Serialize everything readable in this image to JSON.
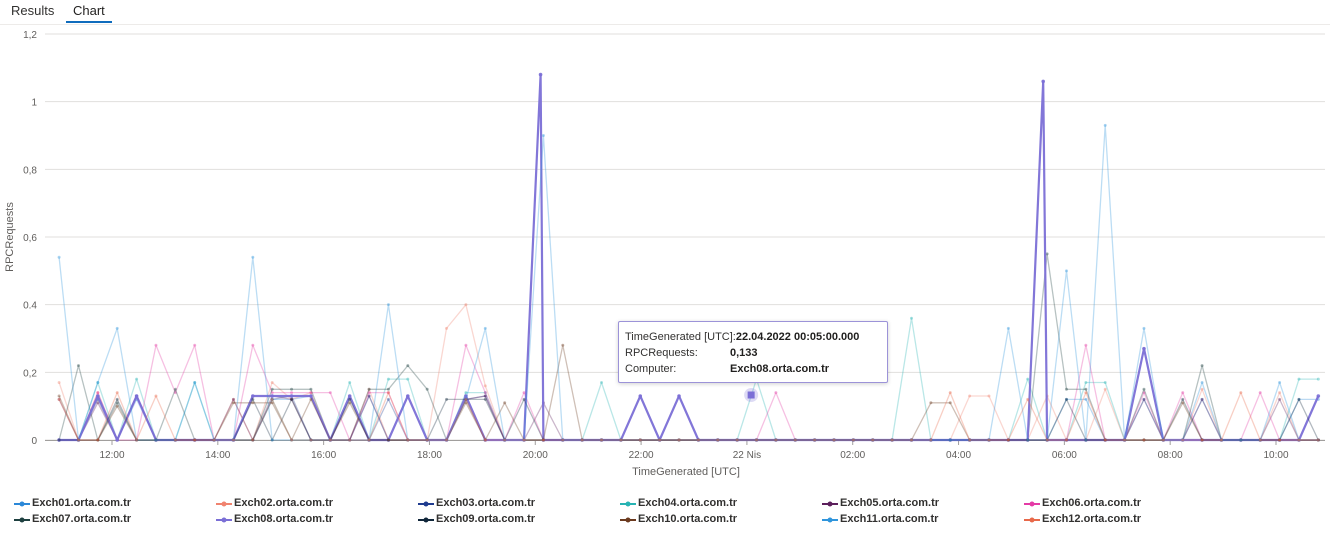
{
  "tabs": [
    {
      "label": "Results",
      "active": false
    },
    {
      "label": "Chart",
      "active": true
    }
  ],
  "colors": {
    "accent": "#0f6cbd",
    "highlight": "#7b6fd6",
    "grid": "#e1dfdd"
  },
  "chart_data": {
    "type": "line",
    "xlabel": "TimeGenerated [UTC]",
    "ylabel": "RPCRequests",
    "yticks": [
      "0",
      "0,2",
      "0.4",
      "0,6",
      "0,8",
      "1",
      "1,2"
    ],
    "ylim": [
      0,
      1.2
    ],
    "xticks": [
      "12:00",
      "14:00",
      "16:00",
      "18:00",
      "20:00",
      "22:00",
      "22 Nis",
      "02:00",
      "04:00",
      "06:00",
      "08:00",
      "10:00"
    ],
    "xtick_hours": [
      12,
      14,
      16,
      18,
      20,
      22,
      24,
      26,
      28,
      30,
      32,
      34
    ],
    "xlim_hours": [
      11,
      34.8
    ],
    "grid": true,
    "legend_position": "bottom",
    "highlighted_series": "Exch08.orta.com.tr",
    "series": [
      {
        "name": "Exch01.orta.com.tr",
        "color": "#2b88d8",
        "values": [
          0,
          0,
          0.13,
          0,
          0.12,
          0,
          0,
          0,
          0,
          0,
          0,
          0.12,
          0.12,
          0.13,
          0,
          0,
          0.13,
          0,
          0,
          0,
          0,
          0.13,
          0,
          0,
          0,
          0,
          0,
          0,
          0,
          0,
          0,
          0,
          0,
          0,
          0,
          0,
          0,
          0,
          0,
          0,
          0,
          0,
          0,
          0,
          0,
          0,
          0,
          0,
          0,
          0,
          0,
          0,
          0.12,
          0.12,
          0,
          0,
          0.12,
          0,
          0,
          0.12,
          0,
          0,
          0,
          0,
          0.12,
          0.12
        ]
      },
      {
        "name": "Exch02.orta.com.tr",
        "color": "#f0836f",
        "values": [
          0.17,
          0,
          0.14,
          0,
          0.13,
          0,
          0,
          0,
          0,
          0.12,
          0,
          0.17,
          0.12,
          0.14,
          0,
          0,
          0.15,
          0,
          0,
          0,
          0.33,
          0.4,
          0.16,
          0,
          0,
          0,
          0,
          0,
          0,
          0,
          0,
          0,
          0,
          0,
          0,
          0,
          0,
          0,
          0,
          0,
          0,
          0,
          0,
          0,
          0,
          0,
          0,
          0.13,
          0.13,
          0,
          0,
          0.13,
          0,
          0,
          0.15,
          0,
          0,
          0,
          0,
          0.15,
          0,
          0,
          0,
          0.14,
          0,
          0
        ]
      },
      {
        "name": "Exch03.orta.com.tr",
        "color": "#1f3b8f",
        "values": [
          0,
          0,
          0.12,
          0,
          0.13,
          0,
          0,
          0,
          0,
          0,
          0,
          0.12,
          0.13,
          0,
          0,
          0,
          0,
          0.12,
          0,
          0,
          0,
          0.12,
          0.13,
          0,
          0,
          0,
          0,
          0,
          0,
          0,
          0,
          0,
          0,
          0,
          0,
          0,
          0,
          0,
          0,
          0,
          0,
          0,
          0,
          0,
          0,
          0,
          0,
          0,
          0,
          0,
          0,
          0,
          0,
          0,
          0,
          0,
          0,
          0,
          0,
          0,
          0,
          0,
          0,
          0,
          0,
          0
        ]
      },
      {
        "name": "Exch04.orta.com.tr",
        "color": "#27b3b3",
        "values": [
          0,
          0,
          0.17,
          0,
          0.18,
          0,
          0,
          0.17,
          0,
          0,
          0,
          0.12,
          0,
          0,
          0,
          0.17,
          0,
          0.18,
          0.18,
          0,
          0,
          0.14,
          0.14,
          0,
          0,
          0,
          0,
          0,
          0.17,
          0,
          0,
          0,
          0,
          0,
          0,
          0,
          0.18,
          0,
          0,
          0,
          0,
          0,
          0,
          0,
          0.36,
          0,
          0,
          0,
          0,
          0,
          0.18,
          0,
          0,
          0.17,
          0.17,
          0,
          0,
          0,
          0,
          0,
          0,
          0,
          0,
          0,
          0.18,
          0.18
        ]
      },
      {
        "name": "Exch05.orta.com.tr",
        "color": "#5c1f5c",
        "values": [
          0.12,
          0,
          0.11,
          0,
          0.13,
          0,
          0,
          0,
          0,
          0.12,
          0,
          0.13,
          0.12,
          0,
          0,
          0,
          0.13,
          0,
          0,
          0,
          0,
          0.12,
          0.13,
          0,
          0,
          0.11,
          0,
          0,
          0,
          0,
          0,
          0,
          0,
          0,
          0,
          0,
          0,
          0,
          0,
          0,
          0,
          0,
          0,
          0,
          0,
          0,
          0,
          0,
          0,
          0,
          0,
          0,
          0,
          0,
          0,
          0,
          0.12,
          0,
          0,
          0.12,
          0,
          0,
          0,
          0.12,
          0,
          0
        ]
      },
      {
        "name": "Exch06.orta.com.tr",
        "color": "#e43ba6",
        "values": [
          0,
          0,
          0.14,
          0,
          0,
          0.28,
          0.14,
          0.28,
          0,
          0,
          0.28,
          0.14,
          0.14,
          0.14,
          0.14,
          0,
          0.14,
          0.14,
          0,
          0,
          0,
          0.28,
          0.14,
          0,
          0.14,
          0,
          0,
          0,
          0,
          0,
          0,
          0,
          0,
          0,
          0,
          0,
          0,
          0.14,
          0,
          0,
          0,
          0,
          0,
          0,
          0,
          0,
          0,
          0,
          0,
          0,
          0,
          0,
          0,
          0.28,
          0,
          0,
          0.14,
          0,
          0.14,
          0,
          0,
          0,
          0.14,
          0,
          0,
          0
        ]
      },
      {
        "name": "Exch07.orta.com.tr",
        "color": "#1e4040",
        "values": [
          0,
          0.22,
          0,
          0.11,
          0,
          0,
          0.15,
          0,
          0,
          0,
          0,
          0.15,
          0.15,
          0.15,
          0,
          0,
          0.15,
          0.15,
          0.22,
          0.15,
          0,
          0.12,
          0,
          0,
          0,
          0,
          0,
          0,
          0,
          0,
          0,
          0,
          0,
          0,
          0,
          0,
          0,
          0,
          0,
          0,
          0,
          0,
          0,
          0,
          0,
          0,
          0,
          0,
          0,
          0,
          0,
          0.55,
          0.15,
          0.15,
          0,
          0,
          0.15,
          0,
          0,
          0.22,
          0,
          0,
          0,
          0,
          0,
          0
        ]
      },
      {
        "name": "Exch08.orta.com.tr",
        "color": "#7b6fd6",
        "values": [
          0,
          0,
          0.13,
          0,
          0.13,
          0,
          0,
          0,
          0,
          0,
          0.13,
          0.13,
          0.13,
          0.13,
          0,
          0.13,
          0,
          0,
          0.13,
          0,
          0,
          0.13,
          0,
          0,
          0,
          0,
          0,
          0,
          0,
          0,
          0.13,
          0,
          0.13,
          0,
          0,
          0,
          0,
          0,
          0,
          0,
          0,
          0,
          0,
          0,
          0,
          0,
          0,
          0,
          0,
          0,
          0,
          0,
          0,
          0,
          0,
          0,
          0.27,
          0,
          0,
          0,
          0,
          0,
          0,
          0,
          0,
          0.13
        ]
      },
      {
        "name": "Exch09.orta.com.tr",
        "color": "#10263a",
        "values": [
          0,
          0,
          0,
          0.12,
          0,
          0,
          0,
          0,
          0,
          0,
          0.12,
          0,
          0.12,
          0,
          0,
          0.12,
          0,
          0,
          0,
          0,
          0.12,
          0.12,
          0.12,
          0,
          0.12,
          0,
          0,
          0,
          0,
          0,
          0,
          0,
          0,
          0,
          0,
          0,
          0,
          0,
          0,
          0,
          0,
          0,
          0,
          0,
          0,
          0,
          0,
          0,
          0,
          0,
          0,
          0,
          0.12,
          0,
          0,
          0,
          0,
          0,
          0.12,
          0,
          0,
          0,
          0,
          0,
          0.12,
          0
        ]
      },
      {
        "name": "Exch10.orta.com.tr",
        "color": "#6b3a1f",
        "values": [
          0.13,
          0,
          0,
          0.1,
          0,
          0,
          0,
          0,
          0,
          0.11,
          0.11,
          0.11,
          0,
          0.12,
          0,
          0.11,
          0,
          0,
          0,
          0,
          0,
          0.11,
          0,
          0.11,
          0,
          0,
          0.28,
          0,
          0,
          0,
          0,
          0,
          0,
          0,
          0,
          0,
          0,
          0,
          0,
          0,
          0,
          0,
          0,
          0,
          0,
          0.11,
          0.11,
          0,
          0,
          0,
          0,
          0,
          0,
          0,
          0,
          0,
          0,
          0,
          0.11,
          0,
          0,
          0,
          0,
          0,
          0,
          0
        ]
      },
      {
        "name": "Exch11.orta.com.tr",
        "color": "#2f95dc",
        "values": [
          0.54,
          0,
          0.17,
          0.33,
          0,
          0,
          0,
          0.17,
          0,
          0,
          0.54,
          0,
          0,
          0,
          0,
          0,
          0,
          0.4,
          0,
          0,
          0,
          0.12,
          0.33,
          0,
          0,
          0.9,
          0,
          0,
          0,
          0,
          0,
          0,
          0,
          0,
          0,
          0,
          0,
          0,
          0,
          0,
          0,
          0,
          0,
          0,
          0,
          0,
          0,
          0,
          0,
          0.33,
          0,
          0,
          0.5,
          0,
          0.93,
          0,
          0.33,
          0,
          0,
          0.17,
          0,
          0,
          0,
          0.17,
          0,
          0
        ]
      },
      {
        "name": "Exch12.orta.com.tr",
        "color": "#e8694a",
        "values": [
          0.12,
          0,
          0,
          0.14,
          0,
          0.13,
          0,
          0,
          0,
          0,
          0,
          0.12,
          0,
          0,
          0,
          0,
          0,
          0.14,
          0,
          0,
          0,
          0.12,
          0,
          0,
          0,
          0,
          0,
          0,
          0,
          0,
          0,
          0,
          0,
          0,
          0,
          0,
          0,
          0,
          0,
          0,
          0,
          0,
          0,
          0,
          0,
          0,
          0.14,
          0,
          0,
          0,
          0.12,
          0,
          0,
          0.14,
          0,
          0,
          0,
          0,
          0,
          0,
          0,
          0.14,
          0,
          0,
          0,
          0
        ]
      }
    ],
    "extra_peaks": [
      {
        "series": "Exch08.orta.com.tr",
        "hour": 20.1,
        "value": 1.08
      },
      {
        "series": "Exch08.orta.com.tr",
        "hour": 29.6,
        "value": 1.06
      }
    ]
  },
  "tooltip": {
    "row1_label": "TimeGenerated [UTC]:",
    "row1_value": "22.04.2022 00:05:00.000",
    "row2_label": "RPCRequests:",
    "row2_value": "0,133",
    "row3_label": "Computer:",
    "row3_value": "Exch08.orta.com.tr",
    "point_hour": 24.08,
    "point_value": 0.133
  }
}
